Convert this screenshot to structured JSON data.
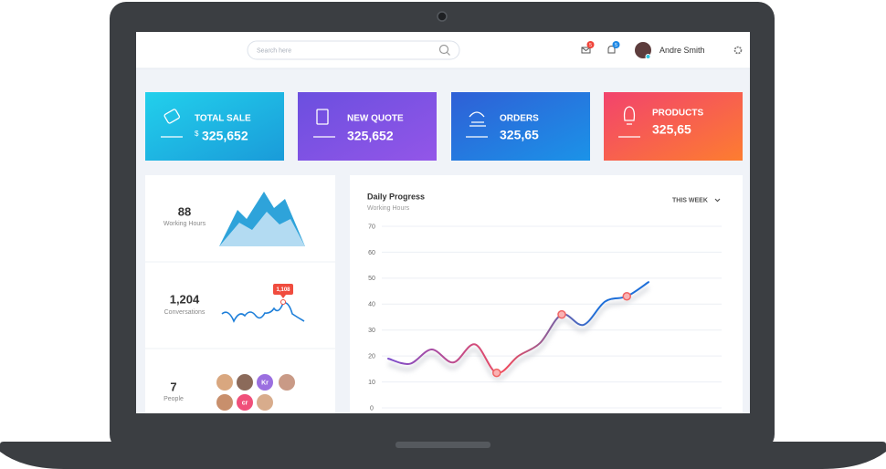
{
  "header": {
    "search_placeholder": "Search here",
    "mail_badge": "5",
    "bell_badge": "5",
    "user_name": "Andre Smith"
  },
  "stat_cards": [
    {
      "label": "TOTAL SALE",
      "currency": "$",
      "value": "325,652"
    },
    {
      "label": "NEW QUOTE",
      "value": "325,652"
    },
    {
      "label": "ORDERS",
      "value": "325,65"
    },
    {
      "label": "PRODUCTS",
      "value": "325,65"
    }
  ],
  "summary": [
    {
      "value": "88",
      "label": "Working Hours"
    },
    {
      "value": "1,204",
      "label": "Conversations",
      "callout": "1,108"
    },
    {
      "value": "7",
      "label": "People",
      "avatar_initials": [
        "Kr",
        "cr"
      ]
    }
  ],
  "daily_progress": {
    "type": "line",
    "title": "Daily Progress",
    "subtitle": "Working Hours",
    "period": "THIS WEEK",
    "ylim": [
      0,
      70
    ],
    "yticks": [
      0,
      10,
      20,
      30,
      40,
      50,
      60,
      70
    ],
    "grid": true,
    "values": [
      19,
      17,
      22.5,
      17.5,
      24.5,
      13.5,
      20,
      25,
      36,
      32,
      41,
      43,
      48.5
    ],
    "highlight_points": [
      5,
      8,
      11
    ],
    "colors": [
      "#7c4dcc",
      "#f04b5e",
      "#1e6fd9"
    ]
  }
}
